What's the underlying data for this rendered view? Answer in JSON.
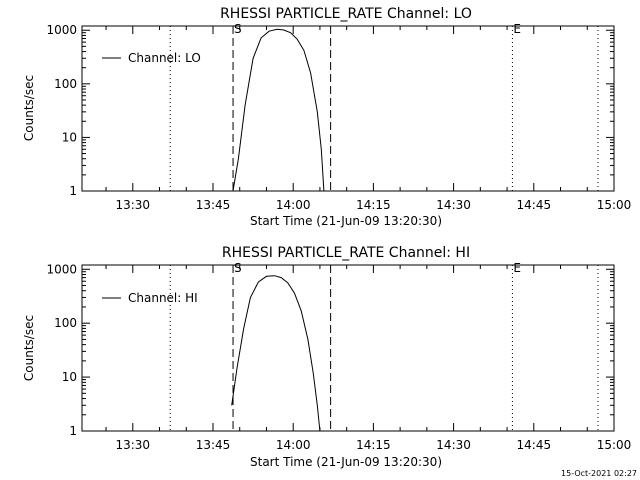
{
  "footer": {
    "timestamp": "15-Oct-2021 02:27"
  },
  "chart_data": [
    {
      "type": "line",
      "title": "RHESSI PARTICLE_RATE Channel: LO",
      "xlabel": "Start Time (21-Jun-09 13:20:30)",
      "ylabel": "Counts/sec",
      "x_scale": "time",
      "y_scale": "log",
      "xlim": [
        "13:20:30",
        "15:00:00"
      ],
      "ylim": [
        1,
        1200
      ],
      "x_ticks": [
        "13:30",
        "13:45",
        "14:00",
        "14:15",
        "14:30",
        "14:45",
        "15:00"
      ],
      "y_ticks": [
        "1",
        "10",
        "100",
        "1000"
      ],
      "legend": {
        "position": "top-left",
        "entries": [
          "Channel: LO"
        ]
      },
      "grid": false,
      "series": [
        {
          "name": "Channel: LO",
          "x": [
            "13:48:45",
            "13:49:45",
            "13:51:00",
            "13:52:30",
            "13:54:00",
            "13:55:30",
            "13:57:00",
            "13:58:15",
            "13:59:30",
            "14:00:45",
            "14:02:00",
            "14:03:15",
            "14:04:30",
            "14:05:15",
            "14:05:45"
          ],
          "y": [
            1,
            4,
            40,
            300,
            720,
            960,
            1040,
            1010,
            900,
            680,
            420,
            160,
            30,
            6,
            1
          ]
        }
      ],
      "annotations": [
        {
          "text": "S",
          "x": "13:48:45"
        },
        {
          "text": "E",
          "x": "14:41:00"
        }
      ],
      "vlines": [
        {
          "x": "13:37:00",
          "style": "dotted"
        },
        {
          "x": "13:48:45",
          "style": "dashed"
        },
        {
          "x": "14:07:00",
          "style": "dashed"
        },
        {
          "x": "14:41:00",
          "style": "dotted"
        },
        {
          "x": "14:57:00",
          "style": "dotted"
        }
      ]
    },
    {
      "type": "line",
      "title": "RHESSI PARTICLE_RATE Channel: HI",
      "xlabel": "Start Time (21-Jun-09 13:20:30)",
      "ylabel": "Counts/sec",
      "x_scale": "time",
      "y_scale": "log",
      "xlim": [
        "13:20:30",
        "15:00:00"
      ],
      "ylim": [
        1,
        1200
      ],
      "x_ticks": [
        "13:30",
        "13:45",
        "14:00",
        "14:15",
        "14:30",
        "14:45",
        "15:00"
      ],
      "y_ticks": [
        "1",
        "10",
        "100",
        "1000"
      ],
      "legend": {
        "position": "top-left",
        "entries": [
          "Channel: HI"
        ]
      },
      "grid": false,
      "series": [
        {
          "name": "Channel: HI",
          "x": [
            "13:48:30",
            "13:49:30",
            "13:50:45",
            "13:52:00",
            "13:53:30",
            "13:55:00",
            "13:56:30",
            "13:57:45",
            "13:59:00",
            "14:00:15",
            "14:01:30",
            "14:02:45",
            "14:03:45",
            "14:04:30",
            "14:05:00"
          ],
          "y": [
            3,
            15,
            80,
            300,
            580,
            740,
            760,
            700,
            560,
            360,
            170,
            50,
            12,
            3,
            1
          ]
        }
      ],
      "annotations": [
        {
          "text": "S",
          "x": "13:48:45"
        },
        {
          "text": "E",
          "x": "14:41:00"
        }
      ],
      "vlines": [
        {
          "x": "13:37:00",
          "style": "dotted"
        },
        {
          "x": "13:48:45",
          "style": "dashed"
        },
        {
          "x": "14:07:00",
          "style": "dashed"
        },
        {
          "x": "14:41:00",
          "style": "dotted"
        },
        {
          "x": "14:57:00",
          "style": "dotted"
        }
      ]
    }
  ]
}
